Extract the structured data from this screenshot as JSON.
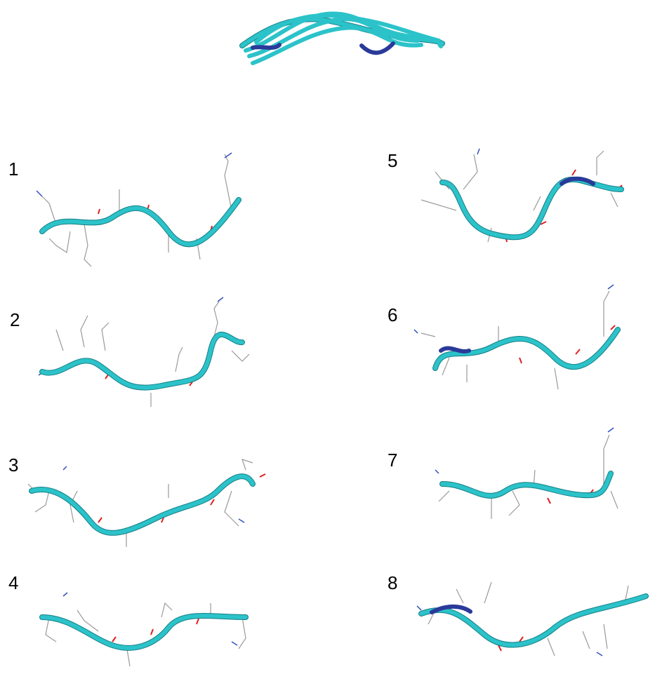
{
  "panels": [
    {
      "label": "1"
    },
    {
      "label": "2"
    },
    {
      "label": "3"
    },
    {
      "label": "4"
    },
    {
      "label": "5"
    },
    {
      "label": "6"
    },
    {
      "label": "7"
    },
    {
      "label": "8"
    }
  ]
}
